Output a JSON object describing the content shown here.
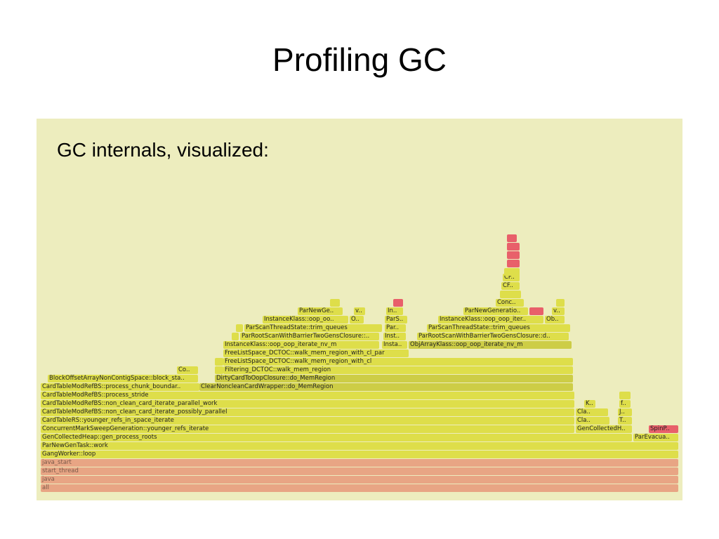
{
  "slide": {
    "title": "Profiling GC",
    "subtitle": "GC internals, visualized:"
  },
  "colors": {
    "panel_background": "#ededbe",
    "frame_yellow": "#dede4a",
    "frame_yellow_dark": "#cdcd46",
    "frame_red": "#e8606a",
    "frame_salmon": "#e8a584"
  },
  "flamegraph": {
    "frames": [
      {
        "label": "all"
      },
      {
        "label": "java"
      },
      {
        "label": "start_thread"
      },
      {
        "label": "java_start"
      },
      {
        "label": "GangWorker::loop"
      },
      {
        "label": "ParNewGenTask::work"
      },
      {
        "label": "GenCollectedHeap::gen_process_roots"
      },
      {
        "label": "ParEvacua.."
      },
      {
        "label": "ConcurrentMarkSweepGeneration::younger_refs_iterate"
      },
      {
        "label": "GenCollectedH.."
      },
      {
        "label": "SpinP.."
      },
      {
        "label": "CardTableRS::younger_refs_in_space_iterate"
      },
      {
        "label": "Cla.."
      },
      {
        "label": "T.."
      },
      {
        "label": "CardTableModRefBS::non_clean_card_iterate_possibly_parallel"
      },
      {
        "label": "Cla.."
      },
      {
        "label": "J.."
      },
      {
        "label": "CardTableModRefBS::non_clean_card_iterate_parallel_work"
      },
      {
        "label": "K.."
      },
      {
        "label": "f.."
      },
      {
        "label": "CardTableModRefBS::process_stride"
      },
      {
        "label": ""
      },
      {
        "label": "CardTableModRefBS::process_chunk_boundar.."
      },
      {
        "label": "ClearNoncleanCardWrapper::do_MemRegion"
      },
      {
        "label": "BlockOffsetArrayNonContigSpace::block_sta.."
      },
      {
        "label": "DirtyCardToOopClosure::do_MemRegion"
      },
      {
        "label": "Co.."
      },
      {
        "label": ""
      },
      {
        "label": "Filtering_DCTOC::walk_mem_region"
      },
      {
        "label": ""
      },
      {
        "label": "FreeListSpace_DCTOC::walk_mem_region_with_cl"
      },
      {
        "label": "FreeListSpace_DCTOC::walk_mem_region_with_cl_par"
      },
      {
        "label": "InstanceKlass::oop_oop_iterate_nv_m"
      },
      {
        "label": "Insta.."
      },
      {
        "label": "ObjArrayKlass::oop_oop_iterate_nv_m"
      },
      {
        "label": ""
      },
      {
        "label": "ParRootScanWithBarrierTwoGensClosure::.."
      },
      {
        "label": "Inst.."
      },
      {
        "label": "ParRootScanWithBarrierTwoGensClosure::d.."
      },
      {
        "label": ""
      },
      {
        "label": "ParScanThreadState::trim_queues"
      },
      {
        "label": "Par.."
      },
      {
        "label": "ParScanThreadState::trim_queues"
      },
      {
        "label": "InstanceKlass::oop_oo.."
      },
      {
        "label": "O.."
      },
      {
        "label": "ParS.."
      },
      {
        "label": "InstanceKlass::oop_oop_iter.."
      },
      {
        "label": "Ob.."
      },
      {
        "label": "ParNewGe.."
      },
      {
        "label": "v.."
      },
      {
        "label": "In.."
      },
      {
        "label": "ParNewGeneratio.."
      },
      {
        "label": ""
      },
      {
        "label": "v.."
      },
      {
        "label": ""
      },
      {
        "label": ""
      },
      {
        "label": ""
      },
      {
        "label": "Conc.."
      },
      {
        "label": ""
      },
      {
        "label": "CF.."
      },
      {
        "label": "CF.."
      },
      {
        "label": ""
      },
      {
        "label": ""
      },
      {
        "label": ""
      },
      {
        "label": ""
      },
      {
        "label": ""
      }
    ]
  }
}
